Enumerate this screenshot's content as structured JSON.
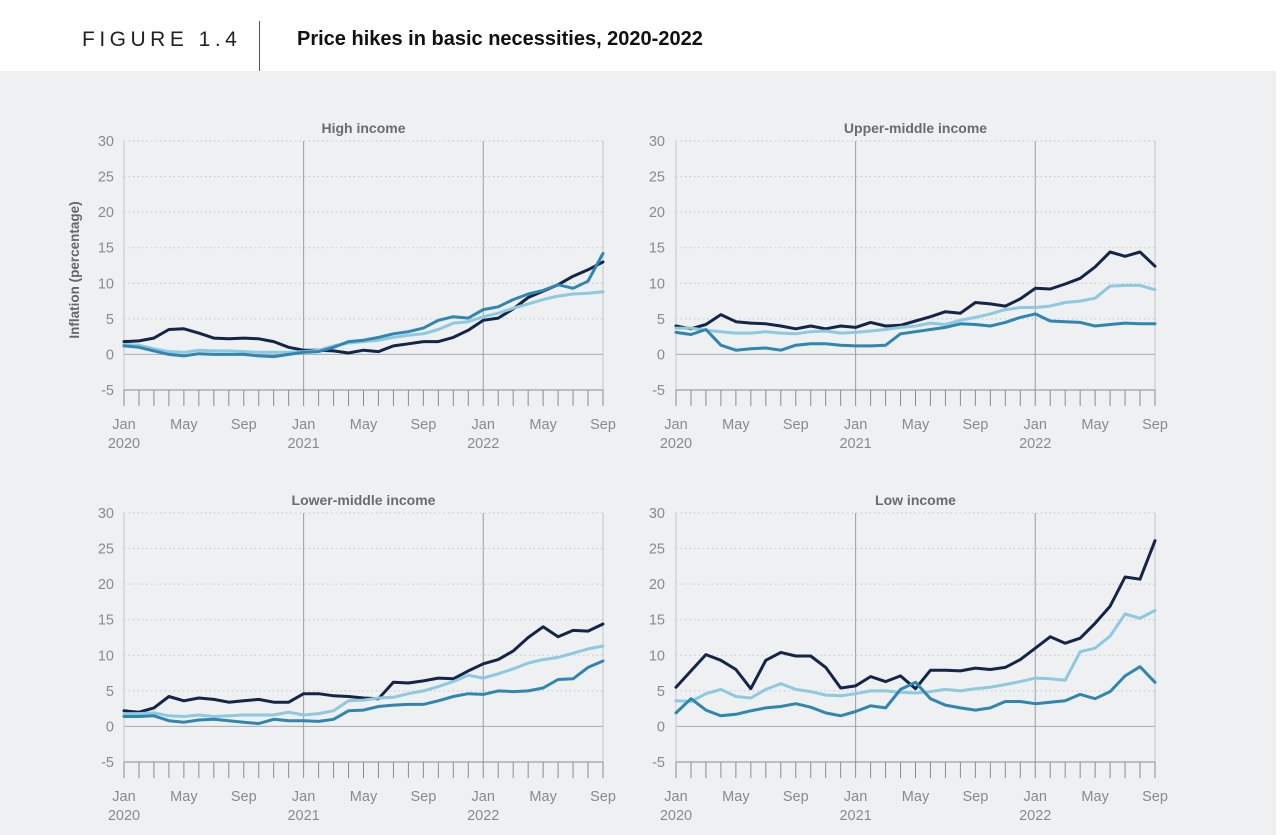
{
  "figure": {
    "label": "FIGURE 1.4",
    "title": "Price hikes in basic necessities, 2020-2022",
    "y_axis_label": "Inflation (percentage)"
  },
  "colors": {
    "dark_navy": "#15254a",
    "medium_blue": "#2f86b2",
    "light_blue": "#8ec9e0",
    "grid": "#c4c8cc",
    "divider": "#9a9ea3",
    "tick_label": "#8a8a8a"
  },
  "x_tick_labels": [
    {
      "m": 0,
      "month": "Jan",
      "year": "2020"
    },
    {
      "m": 4,
      "month": "May",
      "year": ""
    },
    {
      "m": 8,
      "month": "Sep",
      "year": ""
    },
    {
      "m": 12,
      "month": "Jan",
      "year": "2021"
    },
    {
      "m": 16,
      "month": "May",
      "year": ""
    },
    {
      "m": 20,
      "month": "Sep",
      "year": ""
    },
    {
      "m": 24,
      "month": "Jan",
      "year": "2022"
    },
    {
      "m": 28,
      "month": "May",
      "year": ""
    },
    {
      "m": 32,
      "month": "Sep",
      "year": ""
    }
  ],
  "chart_data": [
    {
      "type": "line",
      "title": "High income",
      "ylabel": "Inflation (percentage)",
      "ylim": [
        -5,
        30
      ],
      "yticks": [
        30,
        25,
        20,
        15,
        10,
        5,
        0,
        -5
      ],
      "x_months": 33,
      "series": [
        {
          "name": "dark",
          "color": "#15254a",
          "values": [
            1.8,
            1.9,
            2.3,
            3.5,
            3.6,
            3.0,
            2.3,
            2.2,
            2.3,
            2.2,
            1.8,
            1.0,
            0.6,
            0.6,
            0.5,
            0.2,
            0.6,
            0.4,
            1.2,
            1.5,
            1.8,
            1.8,
            2.4,
            3.4,
            4.8,
            5.1,
            6.4,
            8.0,
            8.9,
            9.8,
            11.0,
            11.9,
            13.0
          ]
        },
        {
          "name": "light",
          "color": "#8ec9e0",
          "values": [
            1.4,
            1.3,
            0.8,
            0.4,
            0.3,
            0.6,
            0.5,
            0.5,
            0.4,
            0.3,
            0.3,
            0.3,
            0.4,
            0.6,
            1.2,
            1.6,
            1.8,
            2.0,
            2.4,
            2.7,
            2.9,
            3.5,
            4.4,
            4.6,
            5.3,
            5.8,
            6.5,
            7.1,
            7.7,
            8.2,
            8.5,
            8.6,
            8.8
          ]
        },
        {
          "name": "medium",
          "color": "#2f86b2",
          "values": [
            1.2,
            1.0,
            0.5,
            0.0,
            -0.2,
            0.1,
            0.0,
            0.0,
            0.0,
            -0.2,
            -0.3,
            0.0,
            0.3,
            0.4,
            1.0,
            1.8,
            2.0,
            2.4,
            2.9,
            3.2,
            3.7,
            4.8,
            5.3,
            5.1,
            6.3,
            6.7,
            7.7,
            8.5,
            9.0,
            9.8,
            9.3,
            10.3,
            14.2
          ]
        }
      ]
    },
    {
      "type": "line",
      "title": "Upper-middle income",
      "ylim": [
        -5,
        30
      ],
      "yticks": [
        30,
        25,
        20,
        15,
        10,
        5,
        0,
        -5
      ],
      "x_months": 33,
      "series": [
        {
          "name": "dark",
          "color": "#15254a",
          "values": [
            4.0,
            3.6,
            4.2,
            5.6,
            4.6,
            4.4,
            4.3,
            4.0,
            3.6,
            4.0,
            3.6,
            4.0,
            3.8,
            4.5,
            4.0,
            4.1,
            4.7,
            5.3,
            6.0,
            5.8,
            7.3,
            7.1,
            6.8,
            7.8,
            9.3,
            9.2,
            9.9,
            10.7,
            12.3,
            14.4,
            13.8,
            14.4,
            12.4
          ]
        },
        {
          "name": "light",
          "color": "#8ec9e0",
          "values": [
            3.7,
            3.7,
            3.4,
            3.2,
            3.0,
            3.0,
            3.2,
            3.0,
            2.9,
            3.2,
            3.3,
            3.0,
            3.1,
            3.3,
            3.5,
            3.8,
            4.0,
            4.4,
            4.2,
            4.8,
            5.2,
            5.7,
            6.3,
            6.6,
            6.6,
            6.8,
            7.3,
            7.5,
            7.9,
            9.6,
            9.7,
            9.7,
            9.1
          ]
        },
        {
          "name": "medium",
          "color": "#2f86b2",
          "values": [
            3.1,
            2.8,
            3.5,
            1.3,
            0.6,
            0.8,
            0.9,
            0.6,
            1.3,
            1.5,
            1.5,
            1.3,
            1.2,
            1.2,
            1.3,
            2.9,
            3.2,
            3.5,
            3.8,
            4.3,
            4.2,
            4.0,
            4.5,
            5.2,
            5.7,
            4.7,
            4.6,
            4.5,
            4.0,
            4.2,
            4.4,
            4.3,
            4.3
          ]
        }
      ]
    },
    {
      "type": "line",
      "title": "Lower-middle income",
      "ylim": [
        -5,
        30
      ],
      "yticks": [
        30,
        25,
        20,
        15,
        10,
        5,
        0,
        -5
      ],
      "x_months": 33,
      "series": [
        {
          "name": "dark",
          "color": "#15254a",
          "values": [
            2.2,
            2.0,
            2.6,
            4.2,
            3.6,
            4.0,
            3.8,
            3.4,
            3.6,
            3.8,
            3.4,
            3.4,
            4.6,
            4.6,
            4.3,
            4.2,
            4.0,
            3.9,
            6.2,
            6.1,
            6.4,
            6.8,
            6.7,
            7.8,
            8.8,
            9.4,
            10.6,
            12.5,
            14.0,
            12.6,
            13.5,
            13.4,
            14.4
          ]
        },
        {
          "name": "light",
          "color": "#8ec9e0",
          "values": [
            1.8,
            1.8,
            1.9,
            1.5,
            1.4,
            1.6,
            1.4,
            1.5,
            1.6,
            1.6,
            1.6,
            2.0,
            1.6,
            1.8,
            2.2,
            3.6,
            3.7,
            4.0,
            4.1,
            4.6,
            5.0,
            5.6,
            6.3,
            7.2,
            6.8,
            7.4,
            8.1,
            8.9,
            9.4,
            9.7,
            10.3,
            10.9,
            11.3
          ]
        },
        {
          "name": "medium",
          "color": "#2f86b2",
          "values": [
            1.4,
            1.4,
            1.5,
            0.8,
            0.6,
            0.9,
            1.0,
            0.8,
            0.6,
            0.4,
            1.0,
            0.8,
            0.8,
            0.7,
            1.0,
            2.2,
            2.3,
            2.8,
            3.0,
            3.1,
            3.1,
            3.6,
            4.2,
            4.6,
            4.5,
            5.0,
            4.9,
            5.0,
            5.4,
            6.6,
            6.7,
            8.3,
            9.2
          ]
        }
      ]
    },
    {
      "type": "line",
      "title": "Low income",
      "ylim": [
        -5,
        30
      ],
      "yticks": [
        30,
        25,
        20,
        15,
        10,
        5,
        0,
        -5
      ],
      "x_months": 33,
      "series": [
        {
          "name": "dark",
          "color": "#15254a",
          "values": [
            5.5,
            7.8,
            10.1,
            9.3,
            8.0,
            5.3,
            9.3,
            10.4,
            9.9,
            9.9,
            8.3,
            5.4,
            5.7,
            7.0,
            6.3,
            7.1,
            5.3,
            7.9,
            7.9,
            7.8,
            8.2,
            8.0,
            8.3,
            9.4,
            11.0,
            12.6,
            11.7,
            12.4,
            14.5,
            16.9,
            21.0,
            20.7,
            26.1
          ]
        },
        {
          "name": "light",
          "color": "#8ec9e0",
          "values": [
            3.6,
            3.5,
            4.6,
            5.2,
            4.2,
            4.0,
            5.2,
            6.0,
            5.2,
            4.9,
            4.4,
            4.3,
            4.6,
            5.0,
            5.0,
            4.8,
            4.7,
            4.9,
            5.2,
            5.0,
            5.3,
            5.5,
            5.9,
            6.3,
            6.8,
            6.7,
            6.5,
            10.5,
            11.0,
            12.7,
            15.8,
            15.2,
            16.3
          ]
        },
        {
          "name": "medium",
          "color": "#2f86b2",
          "values": [
            1.9,
            3.9,
            2.3,
            1.5,
            1.7,
            2.2,
            2.6,
            2.8,
            3.2,
            2.7,
            1.9,
            1.5,
            2.1,
            2.9,
            2.6,
            5.2,
            6.2,
            3.9,
            3.0,
            2.6,
            2.3,
            2.6,
            3.5,
            3.5,
            3.2,
            3.4,
            3.6,
            4.5,
            3.9,
            4.9,
            7.1,
            8.4,
            6.2
          ]
        }
      ]
    }
  ]
}
